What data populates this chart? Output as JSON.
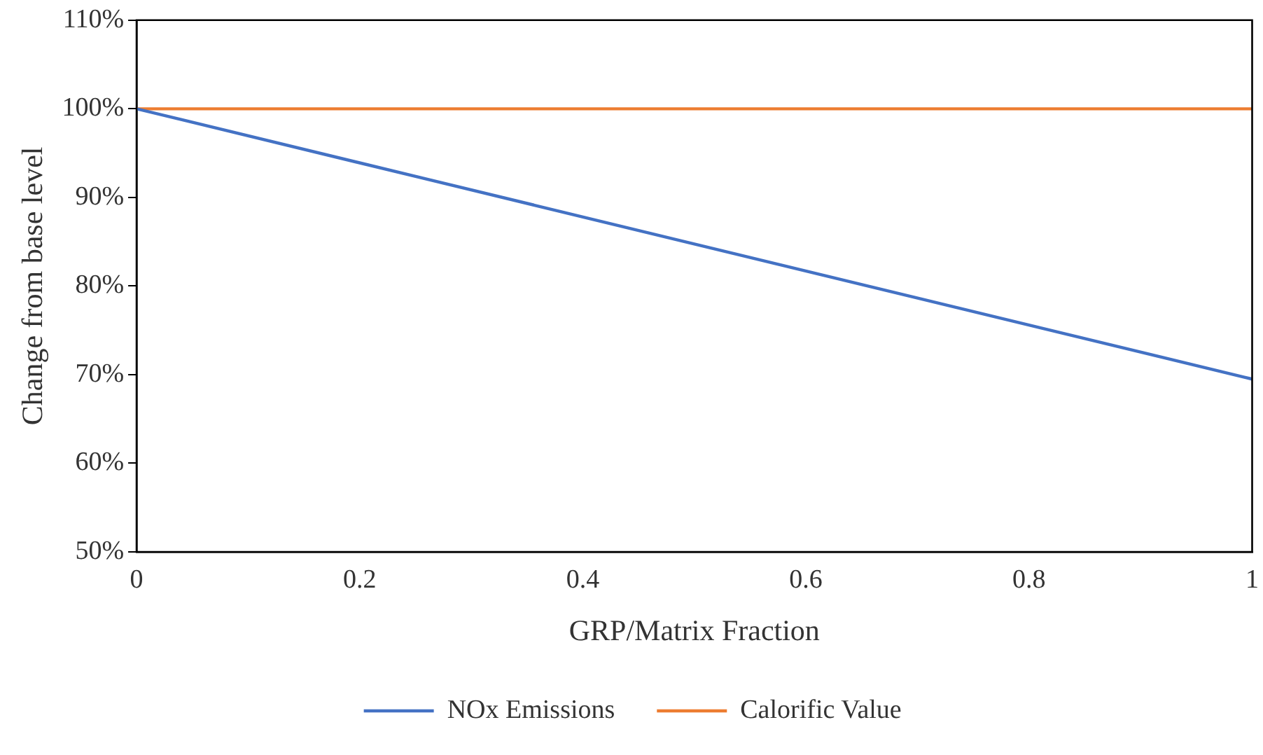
{
  "chart_data": {
    "type": "line",
    "xlabel": "GRP/Matrix Fraction",
    "ylabel": "Change from base level",
    "x": [
      0,
      1
    ],
    "series": [
      {
        "name": "NOx Emissions",
        "color": "#4472c4",
        "values": [
          100,
          69.5
        ]
      },
      {
        "name": "Calorific Value",
        "color": "#ed7d31",
        "values": [
          100,
          100
        ]
      }
    ],
    "xlim": [
      0,
      1
    ],
    "xticks": [
      0,
      0.2,
      0.4,
      0.6,
      0.8,
      1
    ],
    "ylim": [
      50,
      110
    ],
    "yticks": [
      {
        "value": 50,
        "label": "50%"
      },
      {
        "value": 60,
        "label": "60%"
      },
      {
        "value": 70,
        "label": "70%"
      },
      {
        "value": 80,
        "label": "80%"
      },
      {
        "value": 90,
        "label": "90%"
      },
      {
        "value": 100,
        "label": "100%"
      },
      {
        "value": 110,
        "label": "110%"
      }
    ],
    "grid": false,
    "legend": "bottom",
    "marker": "none",
    "line_style": "solid"
  }
}
